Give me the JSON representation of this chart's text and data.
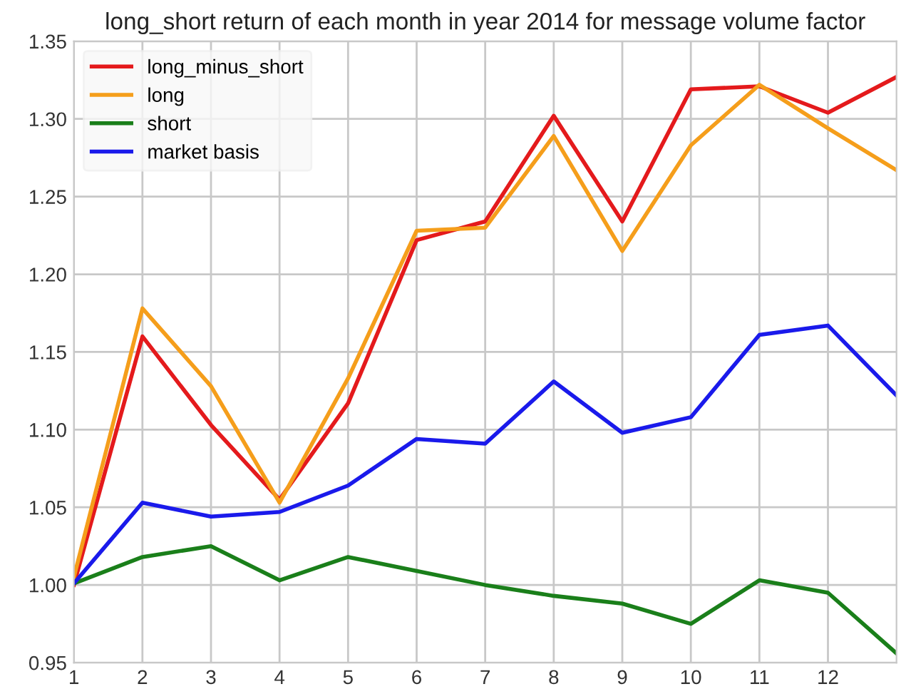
{
  "chart_data": {
    "type": "line",
    "title": "long_short return of each month in year 2014 for message volume factor",
    "x": [
      1,
      2,
      3,
      4,
      5,
      6,
      7,
      8,
      9,
      10,
      11,
      12,
      13
    ],
    "series": [
      {
        "name": "long_minus_short",
        "color": "#e41a1c",
        "values": [
          1.0,
          1.16,
          1.103,
          1.055,
          1.117,
          1.222,
          1.234,
          1.302,
          1.234,
          1.319,
          1.321,
          1.304,
          1.327
        ]
      },
      {
        "name": "long",
        "color": "#f59e1b",
        "values": [
          1.005,
          1.178,
          1.128,
          1.053,
          1.133,
          1.228,
          1.23,
          1.289,
          1.215,
          1.283,
          1.322,
          1.294,
          1.267
        ]
      },
      {
        "name": "short",
        "color": "#1a7f1a",
        "values": [
          1.001,
          1.018,
          1.025,
          1.003,
          1.018,
          1.009,
          1.0,
          0.993,
          0.988,
          0.975,
          1.003,
          0.995,
          0.956
        ]
      },
      {
        "name": "market basis",
        "color": "#1a1aeb",
        "values": [
          1.001,
          1.053,
          1.044,
          1.047,
          1.064,
          1.094,
          1.091,
          1.131,
          1.098,
          1.108,
          1.161,
          1.167,
          1.122
        ]
      }
    ],
    "xlim": [
      1,
      13
    ],
    "xticks": [
      1,
      2,
      3,
      4,
      5,
      6,
      7,
      8,
      9,
      10,
      11,
      12
    ],
    "ylim": [
      0.95,
      1.35
    ],
    "yticks": [
      {
        "value": 0.95,
        "label": "0.95"
      },
      {
        "value": 1.0,
        "label": "1.00"
      },
      {
        "value": 1.05,
        "label": "1.05"
      },
      {
        "value": 1.1,
        "label": "1.10"
      },
      {
        "value": 1.15,
        "label": "1.15"
      },
      {
        "value": 1.2,
        "label": "1.20"
      },
      {
        "value": 1.25,
        "label": "1.25"
      },
      {
        "value": 1.3,
        "label": "1.30"
      },
      {
        "value": 1.35,
        "label": "1.35"
      }
    ],
    "grid": true,
    "legend": "top left",
    "marker": "none",
    "line_style": "solid"
  }
}
